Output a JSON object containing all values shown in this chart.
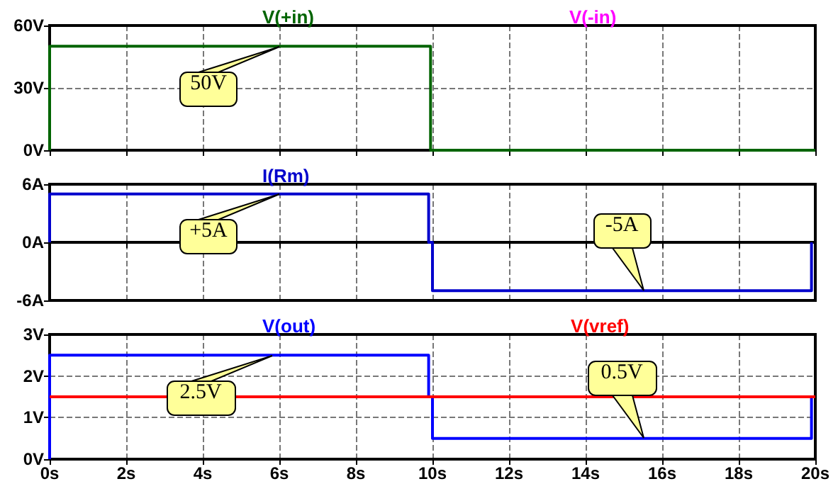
{
  "chart_data": [
    {
      "type": "line",
      "tick_labels": "y",
      "grid": true,
      "legend": "top",
      "marker": "none",
      "line_style": "solid",
      "xlim": [
        0,
        20
      ],
      "xticks": [
        0,
        2,
        4,
        6,
        8,
        10,
        12,
        14,
        16,
        18,
        20
      ],
      "ylim": [
        0,
        60
      ],
      "yticks": [
        {
          "value": 0,
          "label": "0V"
        },
        {
          "value": 30,
          "label": "30V"
        },
        {
          "value": 60,
          "label": "60V"
        }
      ],
      "series": [
        {
          "name": "V(+in)",
          "color": "#006400",
          "x": [
            0,
            0,
            9.95,
            9.95,
            20
          ],
          "values": [
            0,
            50,
            50,
            0,
            0
          ]
        },
        {
          "name": "V(-in)",
          "color": "#ff00ff",
          "values": [
            null
          ]
        }
      ],
      "annotations": [
        {
          "text": "50V",
          "x": 6,
          "y": 50
        }
      ]
    },
    {
      "type": "line",
      "tick_labels": "y",
      "grid": true,
      "legend": "top",
      "marker": "none",
      "line_style": "solid",
      "xlim": [
        0,
        20
      ],
      "xticks": [
        0,
        2,
        4,
        6,
        8,
        10,
        12,
        14,
        16,
        18,
        20
      ],
      "ylim": [
        -6,
        6
      ],
      "yticks": [
        {
          "value": -6,
          "label": "-6A"
        },
        {
          "value": 0,
          "label": "0A"
        },
        {
          "value": 6,
          "label": "6A"
        }
      ],
      "series": [
        {
          "name": "I(Rm)",
          "color": "#0000cc",
          "x": [
            0,
            0,
            9.9,
            9.9,
            10,
            10,
            19.9,
            19.9
          ],
          "values": [
            0,
            5,
            5,
            0,
            0,
            -5,
            -5,
            0
          ]
        }
      ],
      "annotations": [
        {
          "text": "+5A",
          "x": 6,
          "y": 5
        },
        {
          "text": "-5A",
          "x": 15.5,
          "y": -5
        }
      ]
    },
    {
      "type": "line",
      "grid": true,
      "legend": "top",
      "marker": "none",
      "line_style": "solid",
      "xlim": [
        0,
        20
      ],
      "xticks": [
        {
          "value": 0,
          "label": "0s"
        },
        {
          "value": 2,
          "label": "2s"
        },
        {
          "value": 4,
          "label": "4s"
        },
        {
          "value": 6,
          "label": "6s"
        },
        {
          "value": 8,
          "label": "8s"
        },
        {
          "value": 10,
          "label": "10s"
        },
        {
          "value": 12,
          "label": "12s"
        },
        {
          "value": 14,
          "label": "14s"
        },
        {
          "value": 16,
          "label": "16s"
        },
        {
          "value": 18,
          "label": "18s"
        },
        {
          "value": 20,
          "label": "20s"
        }
      ],
      "ylim": [
        0,
        3
      ],
      "yticks": [
        {
          "value": 0,
          "label": "0V"
        },
        {
          "value": 1,
          "label": "1V"
        },
        {
          "value": 2,
          "label": "2V"
        },
        {
          "value": 3,
          "label": "3V"
        }
      ],
      "series": [
        {
          "name": "V(out)",
          "color": "#0000ff",
          "x": [
            0,
            0,
            9.9,
            9.9,
            10,
            10,
            19.9,
            19.9
          ],
          "values": [
            0,
            2.5,
            2.5,
            1.5,
            1.5,
            0.5,
            0.5,
            1.5
          ]
        },
        {
          "name": "V(vref)",
          "color": "#ff0000",
          "x": [
            0,
            20
          ],
          "values": [
            1.5,
            1.5
          ]
        }
      ],
      "annotations": [
        {
          "text": "2.5V",
          "x": 5.8,
          "y": 2.5
        },
        {
          "text": "0.5V",
          "x": 15.5,
          "y": 0.5
        }
      ]
    }
  ]
}
